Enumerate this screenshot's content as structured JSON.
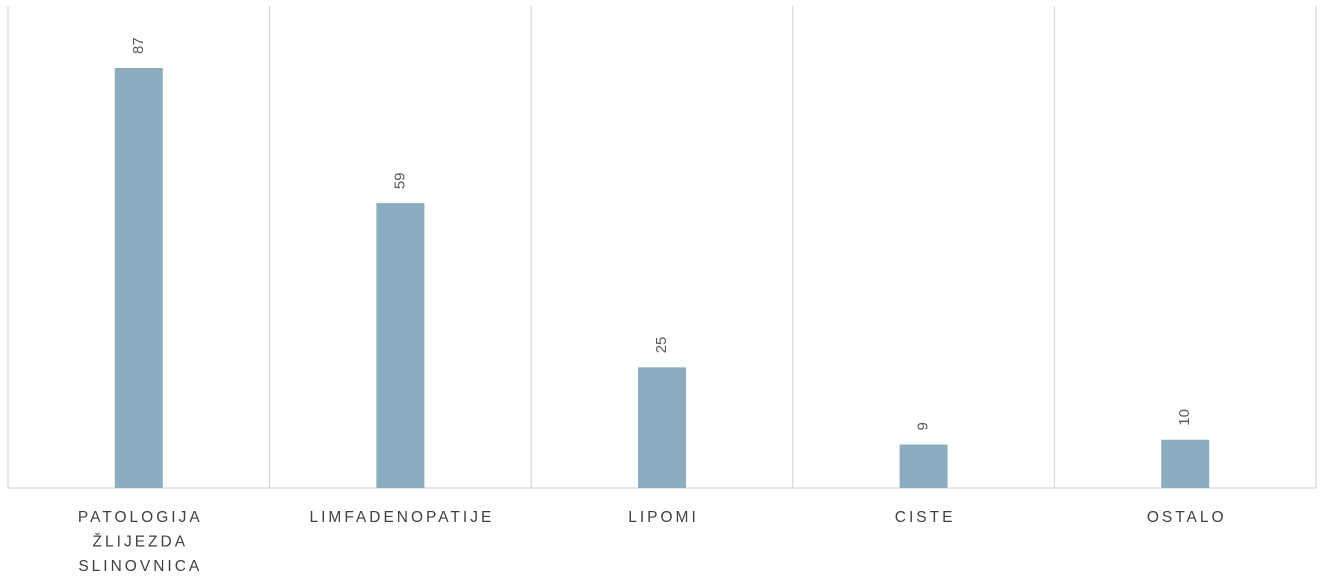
{
  "chart_data": {
    "type": "bar",
    "categories": [
      [
        "PATOLOGIJA",
        "ŽLIJEZDA",
        "SLINOVNICA"
      ],
      [
        "LIMFADENOPATIJE"
      ],
      [
        "LIPOMI"
      ],
      [
        "CISTE"
      ],
      [
        "OSTALO"
      ]
    ],
    "values": [
      87,
      59,
      25,
      9,
      10
    ],
    "value_labels": [
      "87",
      "59",
      "25",
      "9",
      "10"
    ],
    "bar_color": "#8badbf",
    "grid": "vertical category separators",
    "legend": "none",
    "ylim": [
      0,
      87
    ]
  }
}
